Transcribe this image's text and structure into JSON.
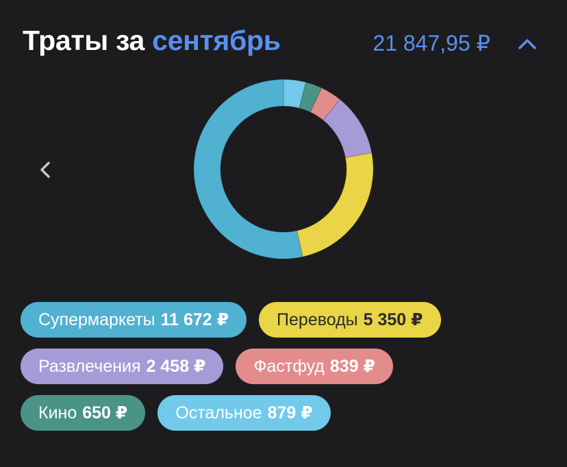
{
  "header": {
    "title_prefix": "Траты за",
    "title_month": "сентябрь",
    "total": "21 847,95 ₽"
  },
  "icons": {
    "collapse": "chevron-up-icon",
    "previous": "chevron-left-icon"
  },
  "colors": {
    "background": "#1c1c1e",
    "accent": "#5a8ff0"
  },
  "chart_data": {
    "type": "pie",
    "donut": true,
    "title": "",
    "series": [
      {
        "name": "Остальное",
        "value": 879,
        "color": "#72c9e9"
      },
      {
        "name": "Кино",
        "value": 650,
        "color": "#4a9387"
      },
      {
        "name": "Фастфуд",
        "value": 839,
        "color": "#e38c8c"
      },
      {
        "name": "Развлечения",
        "value": 2458,
        "color": "#a69bd6"
      },
      {
        "name": "Переводы",
        "value": 5350,
        "color": "#e9d545"
      },
      {
        "name": "Супермаркеты",
        "value": 11672,
        "color": "#50b1d1"
      }
    ]
  },
  "legend": [
    {
      "name": "Супермаркеты",
      "value": "11 672 ₽",
      "color": "#50b1d1",
      "text_color": "#ffffff"
    },
    {
      "name": "Переводы",
      "value": "5 350 ₽",
      "color": "#e9d545",
      "text_color": "#2b2b2b"
    },
    {
      "name": "Развлечения",
      "value": "2 458 ₽",
      "color": "#a69bd6",
      "text_color": "#ffffff"
    },
    {
      "name": "Фастфуд",
      "value": "839 ₽",
      "color": "#e38c8c",
      "text_color": "#ffffff"
    },
    {
      "name": "Кино",
      "value": "650 ₽",
      "color": "#4a9387",
      "text_color": "#ffffff"
    },
    {
      "name": "Остальное",
      "value": "879 ₽",
      "color": "#72c9e9",
      "text_color": "#ffffff"
    }
  ]
}
